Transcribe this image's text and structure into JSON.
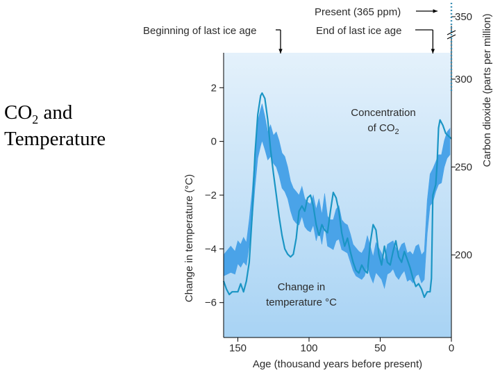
{
  "slide": {
    "title_line1_prefix": "CO",
    "title_line1_sub": "2",
    "title_line1_suffix": " and",
    "title_line2": "Temperature"
  },
  "colors": {
    "panel_top": "#e4f1fb",
    "panel_bottom": "#a8d3f4",
    "co2_band": "#4aa3e8",
    "temp_line": "#1a95c4",
    "present_dots": "#3a8fb5",
    "axis": "#000000"
  },
  "chart_data": {
    "type": "line",
    "title": "",
    "xlabel": "Age (thousand years before present)",
    "ylabel_left": "Change in temperature (°C)",
    "ylabel_right": "Carbon dioxide (parts per million)",
    "xlim": [
      160,
      0
    ],
    "ylim_left": [
      -7.3,
      3.3
    ],
    "ylim_right": [
      153,
      315
    ],
    "x_ticks": [
      150,
      100,
      50,
      0
    ],
    "y_left_ticks": [
      2,
      0,
      -2,
      -4,
      -6
    ],
    "y_left_tick_labels": [
      "2",
      "0",
      "−2",
      "−4",
      "−6"
    ],
    "y_right_ticks": [
      200,
      250,
      300
    ],
    "y_right_break_tick": 350,
    "annotations": {
      "present": "Present (365 ppm)",
      "present_value": 365,
      "beginning_ice_age": "Beginning of last ice age",
      "beginning_ice_age_x": 120,
      "end_ice_age": "End of last ice age",
      "end_ice_age_x": 13,
      "co2_label_line1": "Concentration",
      "co2_label_line2_prefix": "of CO",
      "co2_label_line2_sub": "2",
      "temp_label_line1": "Change in",
      "temp_label_line2": "temperature °C"
    },
    "series": [
      {
        "name": "Concentration of CO2",
        "kind": "band",
        "x": [
          160,
          155,
          152,
          150,
          148,
          146,
          144,
          142,
          140,
          138,
          136,
          134,
          133,
          131,
          129,
          127,
          125,
          123,
          121,
          119,
          117,
          115,
          113,
          111,
          109,
          107,
          105,
          103,
          101,
          99,
          97,
          95,
          93,
          91,
          89,
          87,
          85,
          83,
          81,
          79,
          77,
          75,
          73,
          71,
          69,
          67,
          65,
          63,
          61,
          59,
          57,
          55,
          53,
          51,
          49,
          47,
          45,
          43,
          41,
          39,
          37,
          35,
          33,
          31,
          29,
          27,
          25,
          23,
          21,
          19,
          17,
          15,
          13,
          11,
          9,
          7,
          5,
          3,
          1
        ],
        "low": [
          188,
          190,
          189,
          195,
          193,
          196,
          194,
          205,
          218,
          238,
          255,
          262,
          265,
          260,
          254,
          256,
          252,
          250,
          245,
          238,
          236,
          232,
          225,
          220,
          218,
          217,
          222,
          216,
          214,
          213,
          217,
          208,
          214,
          206,
          217,
          205,
          204,
          203,
          208,
          209,
          203,
          202,
          201,
          196,
          191,
          188,
          187,
          186,
          188,
          194,
          188,
          184,
          190,
          188,
          186,
          181,
          189,
          190,
          192,
          188,
          186,
          189,
          191,
          185,
          186,
          184,
          188,
          189,
          184,
          186,
          212,
          228,
          230,
          236,
          240,
          241,
          250,
          255,
          257
        ],
        "high": [
          200,
          205,
          202,
          208,
          206,
          210,
          207,
          220,
          236,
          258,
          276,
          283,
          286,
          279,
          270,
          274,
          268,
          270,
          265,
          258,
          256,
          250,
          242,
          238,
          236,
          234,
          239,
          232,
          230,
          229,
          234,
          226,
          232,
          223,
          235,
          222,
          220,
          220,
          226,
          228,
          220,
          218,
          217,
          212,
          206,
          204,
          202,
          201,
          204,
          211,
          205,
          199,
          207,
          204,
          201,
          197,
          206,
          207,
          208,
          204,
          202,
          206,
          207,
          201,
          202,
          200,
          205,
          206,
          200,
          202,
          231,
          246,
          249,
          253,
          257,
          257,
          265,
          270,
          272
        ]
      },
      {
        "name": "Change in temperature °C",
        "kind": "line",
        "x": [
          160,
          158,
          156,
          154,
          152,
          150,
          148,
          146,
          144,
          142,
          140,
          138,
          136,
          134,
          133,
          131,
          129,
          127,
          125,
          123,
          121,
          119,
          117,
          115,
          113,
          111,
          109,
          107,
          105,
          103,
          101,
          99,
          97,
          95,
          93,
          91,
          89,
          87,
          85,
          83,
          81,
          79,
          77,
          75,
          73,
          71,
          69,
          67,
          65,
          63,
          61,
          59,
          57,
          55,
          53,
          51,
          49,
          47,
          45,
          43,
          41,
          39,
          37,
          35,
          33,
          31,
          29,
          27,
          25,
          23,
          21,
          19,
          17,
          15,
          14,
          13,
          12,
          11,
          10,
          9,
          8,
          6,
          4,
          2,
          0
        ],
        "y": [
          -5.2,
          -5.5,
          -5.7,
          -5.6,
          -5.6,
          -5.6,
          -5.3,
          -5.6,
          -5.2,
          -4.5,
          -2.8,
          -0.5,
          1.0,
          1.7,
          1.8,
          1.6,
          0.8,
          -0.3,
          -1.2,
          -2.0,
          -2.8,
          -3.5,
          -4.0,
          -4.2,
          -4.3,
          -4.2,
          -3.6,
          -2.6,
          -2.4,
          -2.6,
          -2.1,
          -2.0,
          -2.4,
          -3.1,
          -3.5,
          -3.1,
          -3.3,
          -3.4,
          -2.6,
          -1.9,
          -2.1,
          -2.6,
          -3.4,
          -3.9,
          -3.6,
          -4.1,
          -4.5,
          -4.8,
          -4.9,
          -4.6,
          -4.8,
          -4.9,
          -3.8,
          -3.1,
          -3.3,
          -4.2,
          -4.6,
          -3.9,
          -4.5,
          -4.6,
          -4.1,
          -3.7,
          -4.3,
          -4.5,
          -4.1,
          -4.4,
          -4.7,
          -5.1,
          -5.4,
          -5.3,
          -5.5,
          -5.8,
          -5.6,
          -5.6,
          -5.1,
          -2.0,
          -1.8,
          -1.6,
          -0.8,
          0.5,
          0.8,
          0.6,
          0.3,
          0.2,
          0.1
        ]
      }
    ]
  }
}
